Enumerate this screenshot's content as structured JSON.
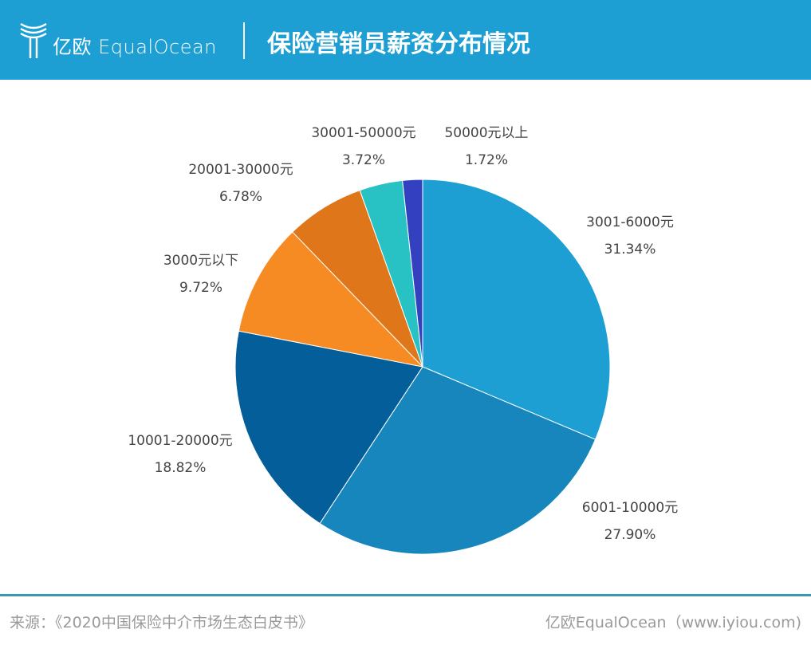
{
  "header": {
    "brand": "亿欧 EqualOcean",
    "title": "保险营销员薪资分布情况"
  },
  "chart_data": {
    "type": "pie",
    "title": "保险营销员薪资分布情况",
    "start": "top",
    "direction": "clockwise",
    "categories": [
      "3001-6000元",
      "6001-10000元",
      "10001-20000元",
      "3000元以下",
      "20001-30000元",
      "30001-50000元",
      "50000元以上"
    ],
    "values": [
      31.34,
      27.9,
      18.82,
      9.72,
      6.78,
      3.72,
      1.72
    ],
    "labels": [
      "31.34%",
      "27.90%",
      "18.82%",
      "9.72%",
      "6.78%",
      "3.72%",
      "1.72%"
    ],
    "colors": [
      "#1e9fd4",
      "#1786bd",
      "#045e9a",
      "#f68b24",
      "#e0761a",
      "#28c2c4",
      "#3341c1"
    ]
  },
  "footer": {
    "source": "来源：《2020中国保险中介市场生态白皮书》",
    "credit": "亿欧EqualOcean（www.iyiou.com)"
  }
}
